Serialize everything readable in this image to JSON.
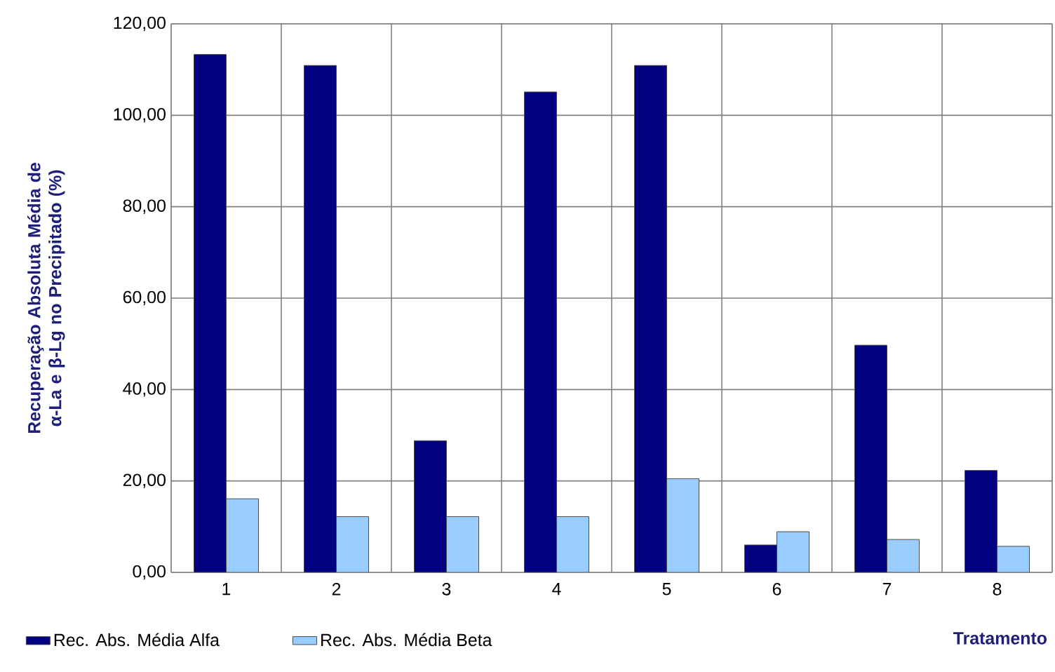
{
  "chart_data": {
    "type": "bar",
    "categories": [
      "1",
      "2",
      "3",
      "4",
      "5",
      "6",
      "7",
      "8"
    ],
    "xlabel": "Tratamento",
    "ylabel": "Recuperação Absoluta Média de α-La e β-Lg no Precipitado (%)",
    "series": [
      {
        "name": "Rec. Abs. Média Alfa",
        "color": "#000080",
        "values": [
          113.3,
          110.9,
          28.8,
          105.1,
          110.9,
          6.0,
          49.7,
          22.3
        ]
      },
      {
        "name": "Rec. Abs. Média Beta",
        "color": "#99ccff",
        "values": [
          16.1,
          12.2,
          12.2,
          12.2,
          20.5,
          8.9,
          7.2,
          5.7
        ]
      }
    ],
    "ylim": [
      0,
      120
    ],
    "yticks": [
      {
        "value": 0,
        "label": "0,00"
      },
      {
        "value": 20,
        "label": "20,00"
      },
      {
        "value": 40,
        "label": "40,00"
      },
      {
        "value": 60,
        "label": "60,00"
      },
      {
        "value": 80,
        "label": "80,00"
      },
      {
        "value": 100,
        "label": "100,00"
      },
      {
        "value": 120,
        "label": "120,00"
      }
    ],
    "grid": true,
    "legend": "bottom"
  }
}
